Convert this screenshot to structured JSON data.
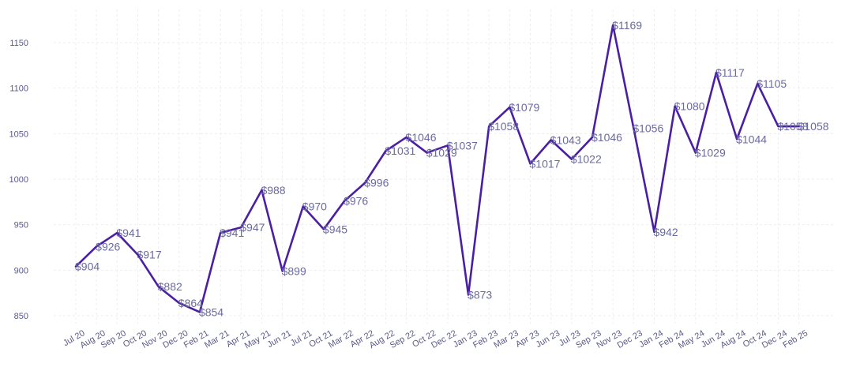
{
  "chart_data": {
    "type": "line",
    "title": "",
    "xlabel": "",
    "ylabel": "",
    "ylim": [
      835,
      1190
    ],
    "yticks": [
      850,
      900,
      950,
      1000,
      1050,
      1100,
      1150
    ],
    "grid": true,
    "line_color": "#4a1fa3",
    "label_prefix": "$",
    "categories": [
      "Jul 20",
      "Aug 20",
      "Sep 20",
      "Oct 20",
      "Nov 20",
      "Dec 20",
      "Feb 21",
      "Mar 21",
      "Apr 21",
      "May 21",
      "Jun 21",
      "Jul 21",
      "Oct 21",
      "Mar 22",
      "Apr 22",
      "Aug 22",
      "Sep 22",
      "Oct 22",
      "Dec 22",
      "Jan 23",
      "Feb 23",
      "Mar 23",
      "Apr 23",
      "Jun 23",
      "Jul 23",
      "Sep 23",
      "Nov 23",
      "Dec 23",
      "Jan 24",
      "Feb 24",
      "May 24",
      "Jun 24",
      "Aug 24",
      "Oct 24",
      "Dec 24",
      "Feb 25"
    ],
    "values": [
      904,
      926,
      941,
      917,
      882,
      864,
      854,
      941,
      947,
      988,
      899,
      970,
      945,
      976,
      996,
      1031,
      1046,
      1029,
      1037,
      873,
      1058,
      1079,
      1017,
      1043,
      1022,
      1046,
      1169,
      1056,
      942,
      1080,
      1029,
      1117,
      1044,
      1105,
      1058,
      1058
    ]
  }
}
